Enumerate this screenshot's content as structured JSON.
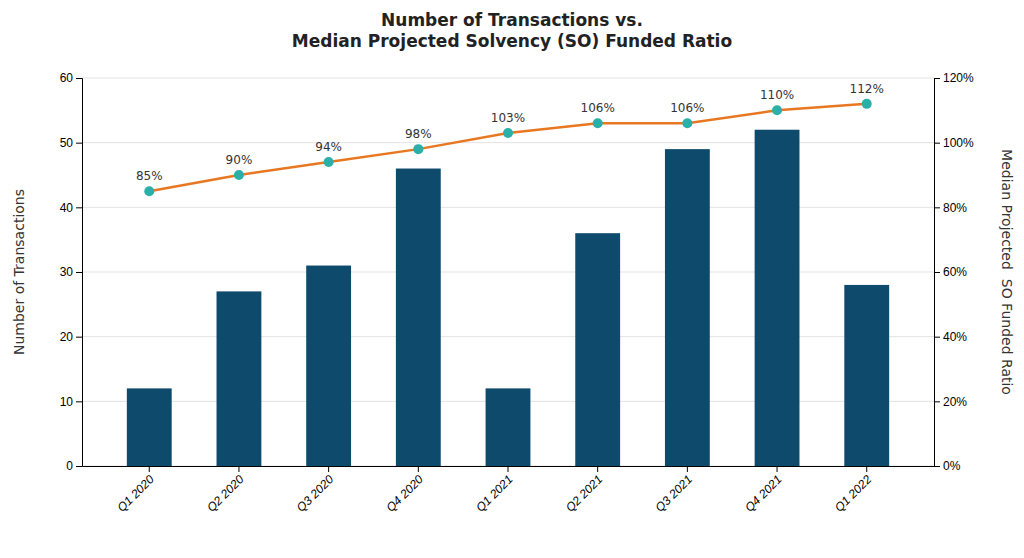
{
  "chart_data": {
    "type": "bar",
    "title": "Number of Transactions vs.\nMedian Projected Solvency (SO) Funded Ratio",
    "categories": [
      "Q1 2020",
      "Q2 2020",
      "Q3 2020",
      "Q4 2020",
      "Q1 2021",
      "Q2 2021",
      "Q3 2021",
      "Q4 2021",
      "Q1 2022"
    ],
    "series": [
      {
        "type": "bar",
        "color": "#0d4a6b",
        "values": [
          12,
          27,
          31,
          46,
          12,
          36,
          49,
          52,
          28
        ]
      },
      {
        "type": "line",
        "axis": "y2",
        "color": "#e87722",
        "marker": "circle",
        "colors": [
          "#2ab0a8",
          "#2ab0a8",
          "#2ab0a8",
          "#2ab0a8",
          "#2ab0a8",
          "#2ab0a8",
          "#2ab0a8",
          "#2ab0a8",
          "#2ab0a8"
        ],
        "values": [
          0.85,
          0.9,
          0.94,
          0.98,
          1.03,
          1.06,
          1.06,
          1.1,
          1.12
        ],
        "value_labels": [
          "85%",
          "90%",
          "94%",
          "98%",
          "103%",
          "106%",
          "106%",
          "110%",
          "112%"
        ],
        "data_labels": true
      }
    ],
    "ylabel": "Number of Transactions",
    "y2label": "Median Projected  SO Funded Ratio",
    "ylim": [
      0,
      60
    ],
    "yticks": [
      0,
      10,
      20,
      30,
      40,
      50,
      60
    ],
    "y2lim": [
      0,
      1.2
    ],
    "y2ticks": [
      {
        "value": 0,
        "label": "0%"
      },
      {
        "value": 0.2,
        "label": "20%"
      },
      {
        "value": 0.4,
        "label": "40%"
      },
      {
        "value": 0.6,
        "label": "60%"
      },
      {
        "value": 0.8,
        "label": "80%"
      },
      {
        "value": 1.0,
        "label": "100%"
      },
      {
        "value": 1.2,
        "label": "120%"
      }
    ],
    "grid": true
  }
}
